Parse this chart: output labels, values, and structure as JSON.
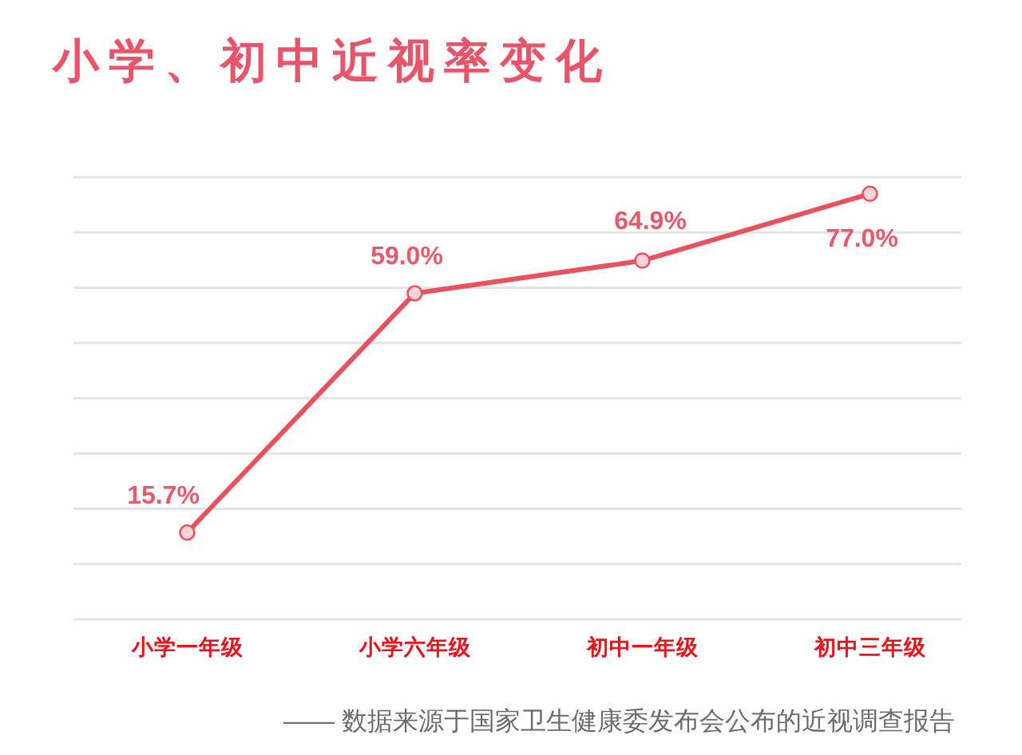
{
  "chart_data": {
    "type": "line",
    "title": "小学、初中近视率变化",
    "categories": [
      "小学一年级",
      "小学六年级",
      "初中一年级",
      "初中三年级"
    ],
    "series": [
      {
        "color": "#e8525f",
        "values": [
          15.7,
          59.0,
          64.9,
          77.0
        ],
        "value_labels": [
          "15.7%",
          "59.0%",
          "64.9%",
          "77.0%"
        ]
      }
    ],
    "ylim": [
      0,
      80
    ],
    "yticks": [
      {
        "value": 0,
        "label": null
      },
      {
        "value": 10,
        "label": null
      },
      {
        "value": 20,
        "label": null
      },
      {
        "value": 30,
        "label": null
      },
      {
        "value": 40,
        "label": null
      },
      {
        "value": 50,
        "label": null
      },
      {
        "value": 60,
        "label": null
      },
      {
        "value": 70,
        "label": null
      },
      {
        "value": 80,
        "label": null
      }
    ],
    "tick_labels": "x",
    "grid": "y",
    "marker": "circle",
    "line_style": "solid",
    "annotations": [
      "—— 数据来源于国家卫生健康委发布会公布的近视调查报告"
    ]
  }
}
